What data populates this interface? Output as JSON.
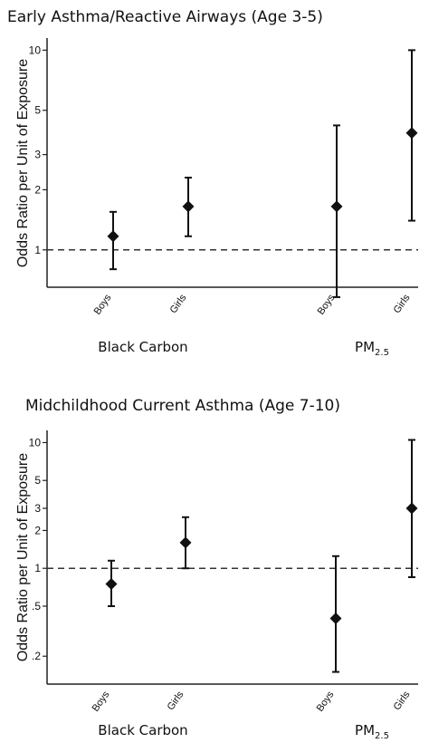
{
  "chart_data": [
    {
      "type": "scatter",
      "title": "Early Asthma/Reactive Airways (Age 3-5)",
      "ylabel": "Odds Ratio per Unit of Exposure",
      "yscale": "log",
      "ylim": [
        0.65,
        11.5
      ],
      "yticks": [
        1,
        2,
        3,
        5,
        10
      ],
      "ytick_labels": [
        "1",
        "2",
        "3",
        "5",
        "10"
      ],
      "reference_line": 1,
      "groups": [
        {
          "label": "Black Carbon",
          "label_sub": ""
        },
        {
          "label": "PM",
          "label_sub": "2.5"
        }
      ],
      "categories": [
        "Boys",
        "Girls",
        "Boys",
        "Girls"
      ],
      "estimates": [
        1.17,
        1.65,
        1.65,
        3.85
      ],
      "ci_lower": [
        0.8,
        1.17,
        0.58,
        1.4
      ],
      "ci_upper": [
        1.55,
        2.3,
        4.2,
        10.0
      ]
    },
    {
      "type": "scatter",
      "title": "Midchildhood Current Asthma (Age 7-10)",
      "ylabel": "Odds Ratio per Unit of Exposure",
      "yscale": "log",
      "ylim": [
        0.12,
        12.5
      ],
      "yticks": [
        0.2,
        0.5,
        1,
        2,
        3,
        5,
        10
      ],
      "ytick_labels": [
        ".2",
        ".5",
        "1",
        "2",
        "3",
        "5",
        "10"
      ],
      "reference_line": 1,
      "groups": [
        {
          "label": "Black Carbon",
          "label_sub": ""
        },
        {
          "label": "PM",
          "label_sub": "2.5"
        }
      ],
      "categories": [
        "Boys",
        "Girls",
        "Boys",
        "Girls"
      ],
      "estimates": [
        0.75,
        1.6,
        0.4,
        3.0
      ],
      "ci_lower": [
        0.5,
        1.0,
        0.15,
        0.85
      ],
      "ci_upper": [
        1.15,
        2.55,
        1.25,
        10.5
      ]
    }
  ]
}
